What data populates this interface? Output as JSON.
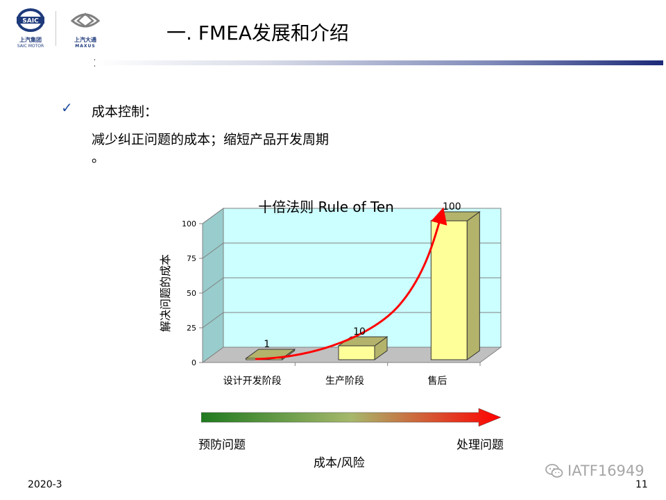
{
  "header": {
    "logo_left": {
      "text": "上汽集团",
      "sub": "SAIC MOTOR",
      "emblem": "SAIC"
    },
    "logo_right": {
      "text": "上汽大通",
      "sub": "MAXUS"
    },
    "title": "一. FMEA发展和介绍"
  },
  "content": {
    "bullet_icon": "checkmark-icon",
    "bullet_title": "成本控制：",
    "line1": "减少纠正问题的成本；缩短产品开发周期",
    "line2": "。"
  },
  "chart_data": {
    "type": "bar",
    "title": "十倍法则 Rule of Ten",
    "ylabel": "解决问题的成本",
    "xlabel": "",
    "categories": [
      "设计开发阶段",
      "生产阶段",
      "售后"
    ],
    "values": [
      1,
      10,
      100
    ],
    "data_labels": [
      "1",
      "10",
      "100"
    ],
    "ylim": [
      0,
      100
    ],
    "yticks": [
      0,
      25,
      50,
      75,
      100
    ],
    "ytick_labels": [
      "0",
      "25",
      "50",
      "75",
      "100"
    ],
    "grid": true,
    "legend": "none",
    "style": "3d",
    "colors": {
      "wall": "#ccffff",
      "bar_front": "#ffff99",
      "bar_side": "#b3b36b",
      "floor": "#c0c0c0",
      "trend_arrow": "#ff0000"
    }
  },
  "risk_scale": {
    "left_label": "预防问题",
    "right_label": "处理问题",
    "caption": "成本/风险",
    "gradient_start": "#1f7a1f",
    "gradient_mid": "#a6b86b",
    "gradient_end": "#ff0000"
  },
  "footer": {
    "date": "2020-3",
    "page": "11",
    "watermark": "IATF16949",
    "watermark_icon": "wechat-icon"
  }
}
